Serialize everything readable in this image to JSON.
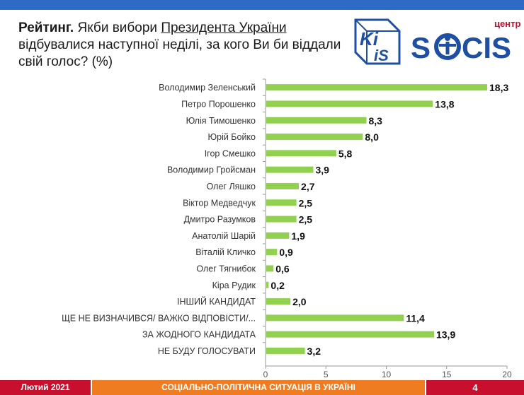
{
  "header": {
    "title_bold": "Рейтинг.",
    "title_pre": "Якби вибори",
    "title_underlined": "Президента України",
    "title_post": "відбувалися наступної неділі, за кого Ви би віддали свій голос? (%)"
  },
  "logos": {
    "kiis_text_1": "Ki",
    "kiis_text_2": "iS",
    "socis_small": "центр",
    "socis_main_1": "S",
    "socis_main_2": "CIS"
  },
  "footer": {
    "date": "Лютий 2021",
    "subtitle": "СОЦІАЛЬНО-ПОЛІТИЧНА СИТУАЦІЯ В УКРАЇНІ",
    "page": "4"
  },
  "colors": {
    "bar": "#92d050",
    "topbar": "#2e6bc4",
    "footer_red": "#c8102e",
    "footer_orange": "#f07c22",
    "logo_blue": "#1f4fa3"
  },
  "chart_data": {
    "type": "bar",
    "orientation": "horizontal",
    "title": "Рейтинг. Якби вибори Президента України відбувалися наступної неділі, за кого Ви би віддали свій голос? (%)",
    "categories": [
      "Володимир Зеленський",
      "Петро Порошенко",
      "Юлія Тимошенко",
      "Юрій Бойко",
      "Ігор Смешко",
      "Володимир Гройсман",
      "Олег Ляшко",
      "Віктор Медведчук",
      "Дмитро Разумков",
      "Анатолій Шарій",
      "Віталій Кличко",
      "Олег Тягнибок",
      "Кіра Рудик",
      "ІНШИЙ КАНДИДАТ",
      "ЩЕ НЕ ВИЗНАЧИВСЯ/ ВАЖКО ВІДПОВІСТИ/...",
      "ЗА ЖОДНОГО КАНДИДАТА",
      "НЕ БУДУ ГОЛОСУВАТИ"
    ],
    "values": [
      18.3,
      13.8,
      8.3,
      8.0,
      5.8,
      3.9,
      2.7,
      2.5,
      2.5,
      1.9,
      0.9,
      0.6,
      0.2,
      2.0,
      11.4,
      13.9,
      3.2
    ],
    "value_labels": [
      "18,3",
      "13,8",
      "8,3",
      "8,0",
      "5,8",
      "3,9",
      "2,7",
      "2,5",
      "2,5",
      "1,9",
      "0,9",
      "0,6",
      "0,2",
      "2,0",
      "11,4",
      "13,9",
      "3,2"
    ],
    "xlim": [
      0,
      20
    ],
    "xticks": [
      "0",
      "5",
      "10",
      "15",
      "20"
    ],
    "xlabel": "",
    "ylabel": "",
    "grid": false,
    "legend": "none"
  }
}
